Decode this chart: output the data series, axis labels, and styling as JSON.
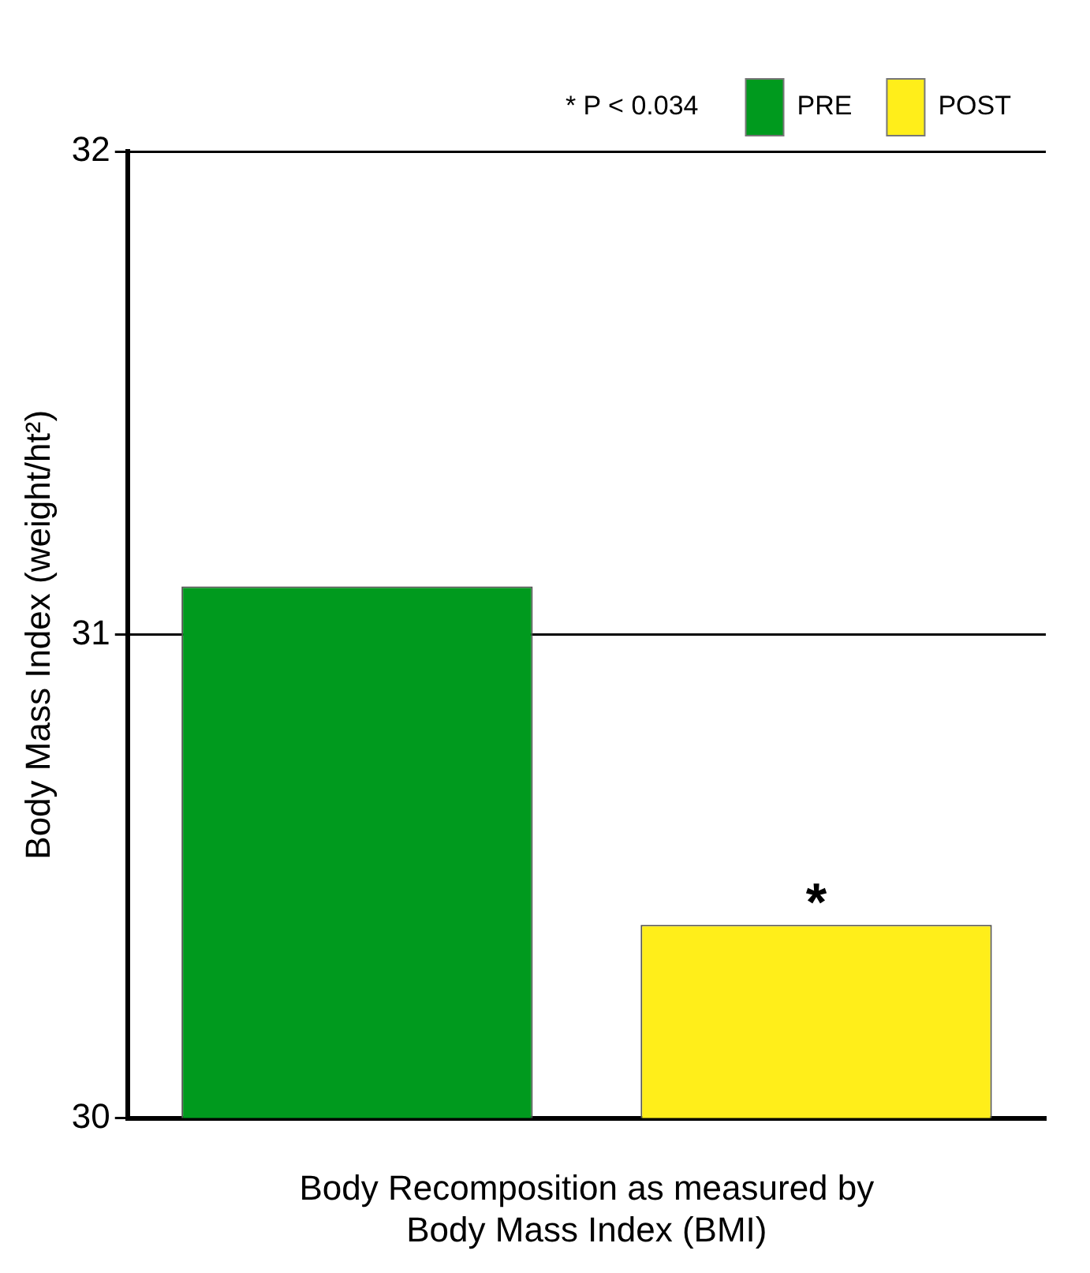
{
  "chart_data": {
    "type": "bar",
    "categories": [
      null,
      null
    ],
    "series": [
      {
        "name": "PRE",
        "color": "#009a1e",
        "values": [
          31.1,
          null
        ]
      },
      {
        "name": "POST",
        "color": "#ffee1a",
        "values": [
          null,
          30.4
        ]
      }
    ],
    "ylim": [
      30,
      32
    ],
    "yticks": [
      30,
      31,
      32
    ],
    "grid": "y",
    "legend": "top right",
    "ylabel": "Body Mass Index (weight/ht²)",
    "xlabel": "Body Recomposition as measured by Body Mass Index (BMI)",
    "annotations": [
      {
        "text": "*",
        "y": 30.4
      },
      "* P < 0.034"
    ]
  }
}
